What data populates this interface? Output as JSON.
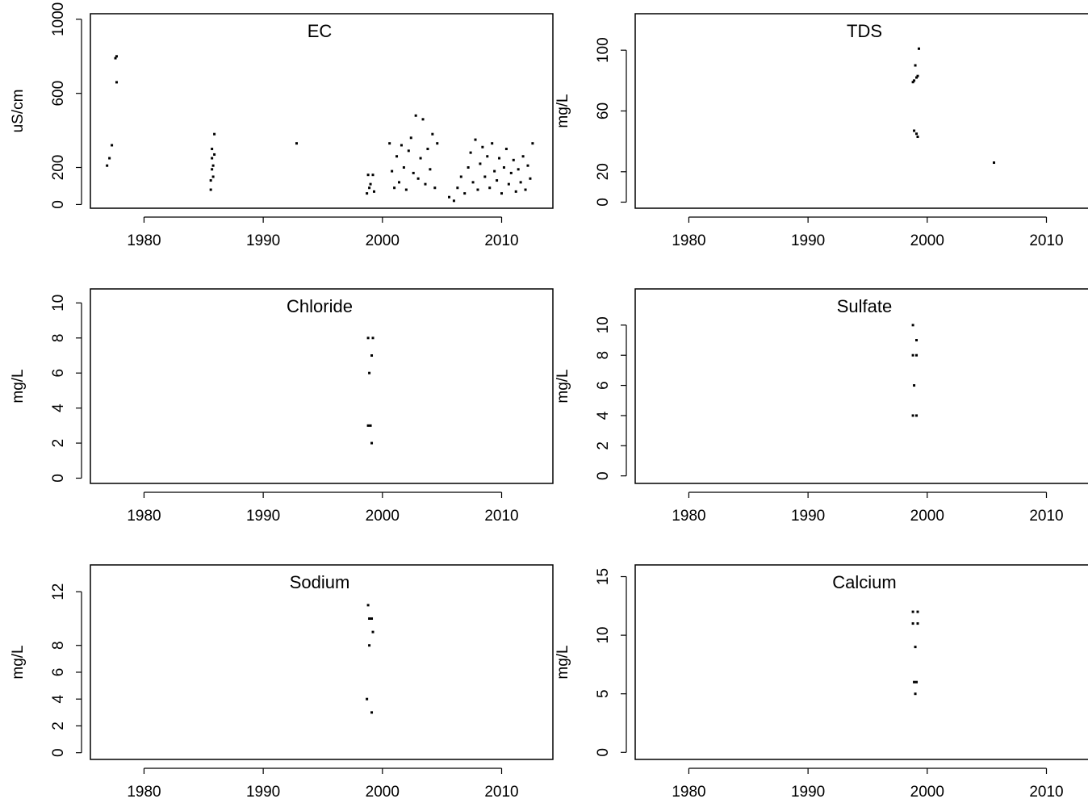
{
  "chart_data": [
    {
      "type": "scatter",
      "title": "EC",
      "ylabel": "uS/cm",
      "xlim": [
        1975.5,
        2014.3
      ],
      "ylim": [
        -20,
        1030
      ],
      "xticks": [
        1980,
        1990,
        2000,
        2010
      ],
      "yticks": [
        0,
        200,
        600,
        1000
      ],
      "x": [
        1976.9,
        1977.1,
        1977.3,
        1977.6,
        1977.7,
        1977.7,
        1985.6,
        1985.6,
        1985.7,
        1985.7,
        1985.7,
        1985.8,
        1985.8,
        1985.9,
        1985.9,
        1992.8,
        1998.7,
        1998.8,
        1998.9,
        1999.0,
        1999.2,
        1999.3,
        2000.6,
        2000.8,
        2001.0,
        2001.2,
        2001.4,
        2001.6,
        2001.8,
        2002.0,
        2002.2,
        2002.4,
        2002.6,
        2002.8,
        2003.0,
        2003.2,
        2003.4,
        2003.6,
        2003.8,
        2004.0,
        2004.2,
        2004.4,
        2004.6,
        2005.6,
        2006.0,
        2006.3,
        2006.6,
        2006.9,
        2007.2,
        2007.4,
        2007.6,
        2007.8,
        2008.0,
        2008.2,
        2008.4,
        2008.6,
        2008.8,
        2009.0,
        2009.2,
        2009.4,
        2009.6,
        2009.8,
        2010.0,
        2010.2,
        2010.4,
        2010.6,
        2010.8,
        2011.0,
        2011.2,
        2011.4,
        2011.6,
        2011.8,
        2012.0,
        2012.2,
        2012.4,
        2012.6
      ],
      "y": [
        210,
        250,
        320,
        790,
        800,
        660,
        80,
        130,
        190,
        250,
        300,
        150,
        210,
        270,
        380,
        330,
        60,
        160,
        90,
        110,
        160,
        70,
        330,
        180,
        90,
        260,
        120,
        320,
        200,
        80,
        290,
        360,
        170,
        480,
        140,
        250,
        460,
        110,
        300,
        190,
        380,
        90,
        330,
        40,
        20,
        90,
        150,
        60,
        200,
        280,
        120,
        350,
        80,
        220,
        310,
        150,
        260,
        90,
        330,
        180,
        130,
        250,
        60,
        200,
        300,
        110,
        170,
        240,
        70,
        190,
        120,
        260,
        80,
        210,
        140,
        330
      ]
    },
    {
      "type": "scatter",
      "title": "TDS",
      "ylabel": "mg/L",
      "xlim": [
        1975.5,
        2014.3
      ],
      "ylim": [
        -4,
        124
      ],
      "xticks": [
        1980,
        1990,
        2000,
        2010
      ],
      "yticks": [
        0,
        20,
        60,
        100
      ],
      "x": [
        1998.8,
        1998.9,
        1999.0,
        1999.1,
        1999.2,
        1999.3,
        1998.9,
        1999.1,
        1999.2,
        2005.6
      ],
      "y": [
        79,
        80,
        90,
        82,
        83,
        101,
        47,
        45,
        43,
        26
      ]
    },
    {
      "type": "scatter",
      "title": "Chloride",
      "ylabel": "mg/L",
      "xlim": [
        1975.5,
        2014.3
      ],
      "ylim": [
        -0.3,
        10.8
      ],
      "xticks": [
        1980,
        1990,
        2000,
        2010
      ],
      "yticks": [
        0,
        2,
        4,
        6,
        8,
        10
      ],
      "x": [
        1998.8,
        1999.2,
        1999.1,
        1998.9,
        1998.8,
        1999.0,
        1999.1
      ],
      "y": [
        8,
        8,
        7,
        6,
        3,
        3,
        2
      ]
    },
    {
      "type": "scatter",
      "title": "Sulfate",
      "ylabel": "mg/L",
      "xlim": [
        1975.5,
        2014.3
      ],
      "ylim": [
        -0.5,
        12.4
      ],
      "xticks": [
        1980,
        1990,
        2000,
        2010
      ],
      "yticks": [
        0,
        2,
        4,
        6,
        8,
        10
      ],
      "x": [
        1998.8,
        1999.1,
        1998.8,
        1999.1,
        1998.9,
        1998.8,
        1999.1
      ],
      "y": [
        10,
        9,
        8,
        8,
        6,
        4,
        4
      ]
    },
    {
      "type": "scatter",
      "title": "Sodium",
      "ylabel": "mg/L",
      "xlim": [
        1975.5,
        2014.3
      ],
      "ylim": [
        -0.5,
        14
      ],
      "xticks": [
        1980,
        1990,
        2000,
        2010
      ],
      "yticks": [
        0,
        2,
        4,
        6,
        8,
        12
      ],
      "x": [
        1998.8,
        1998.9,
        1999.1,
        1999.2,
        1998.9,
        1998.7,
        1999.1
      ],
      "y": [
        11,
        10,
        10,
        9,
        8,
        4,
        3
      ]
    },
    {
      "type": "scatter",
      "title": "Calcium",
      "ylabel": "mg/L",
      "xlim": [
        1975.5,
        2014.3
      ],
      "ylim": [
        -0.6,
        16
      ],
      "xticks": [
        1980,
        1990,
        2000,
        2010
      ],
      "yticks": [
        0,
        5,
        10,
        15
      ],
      "x": [
        1998.8,
        1999.2,
        1998.8,
        1999.2,
        1999.0,
        1998.9,
        1999.1,
        1999.0
      ],
      "y": [
        12,
        12,
        11,
        11,
        9,
        6,
        6,
        5
      ]
    }
  ]
}
